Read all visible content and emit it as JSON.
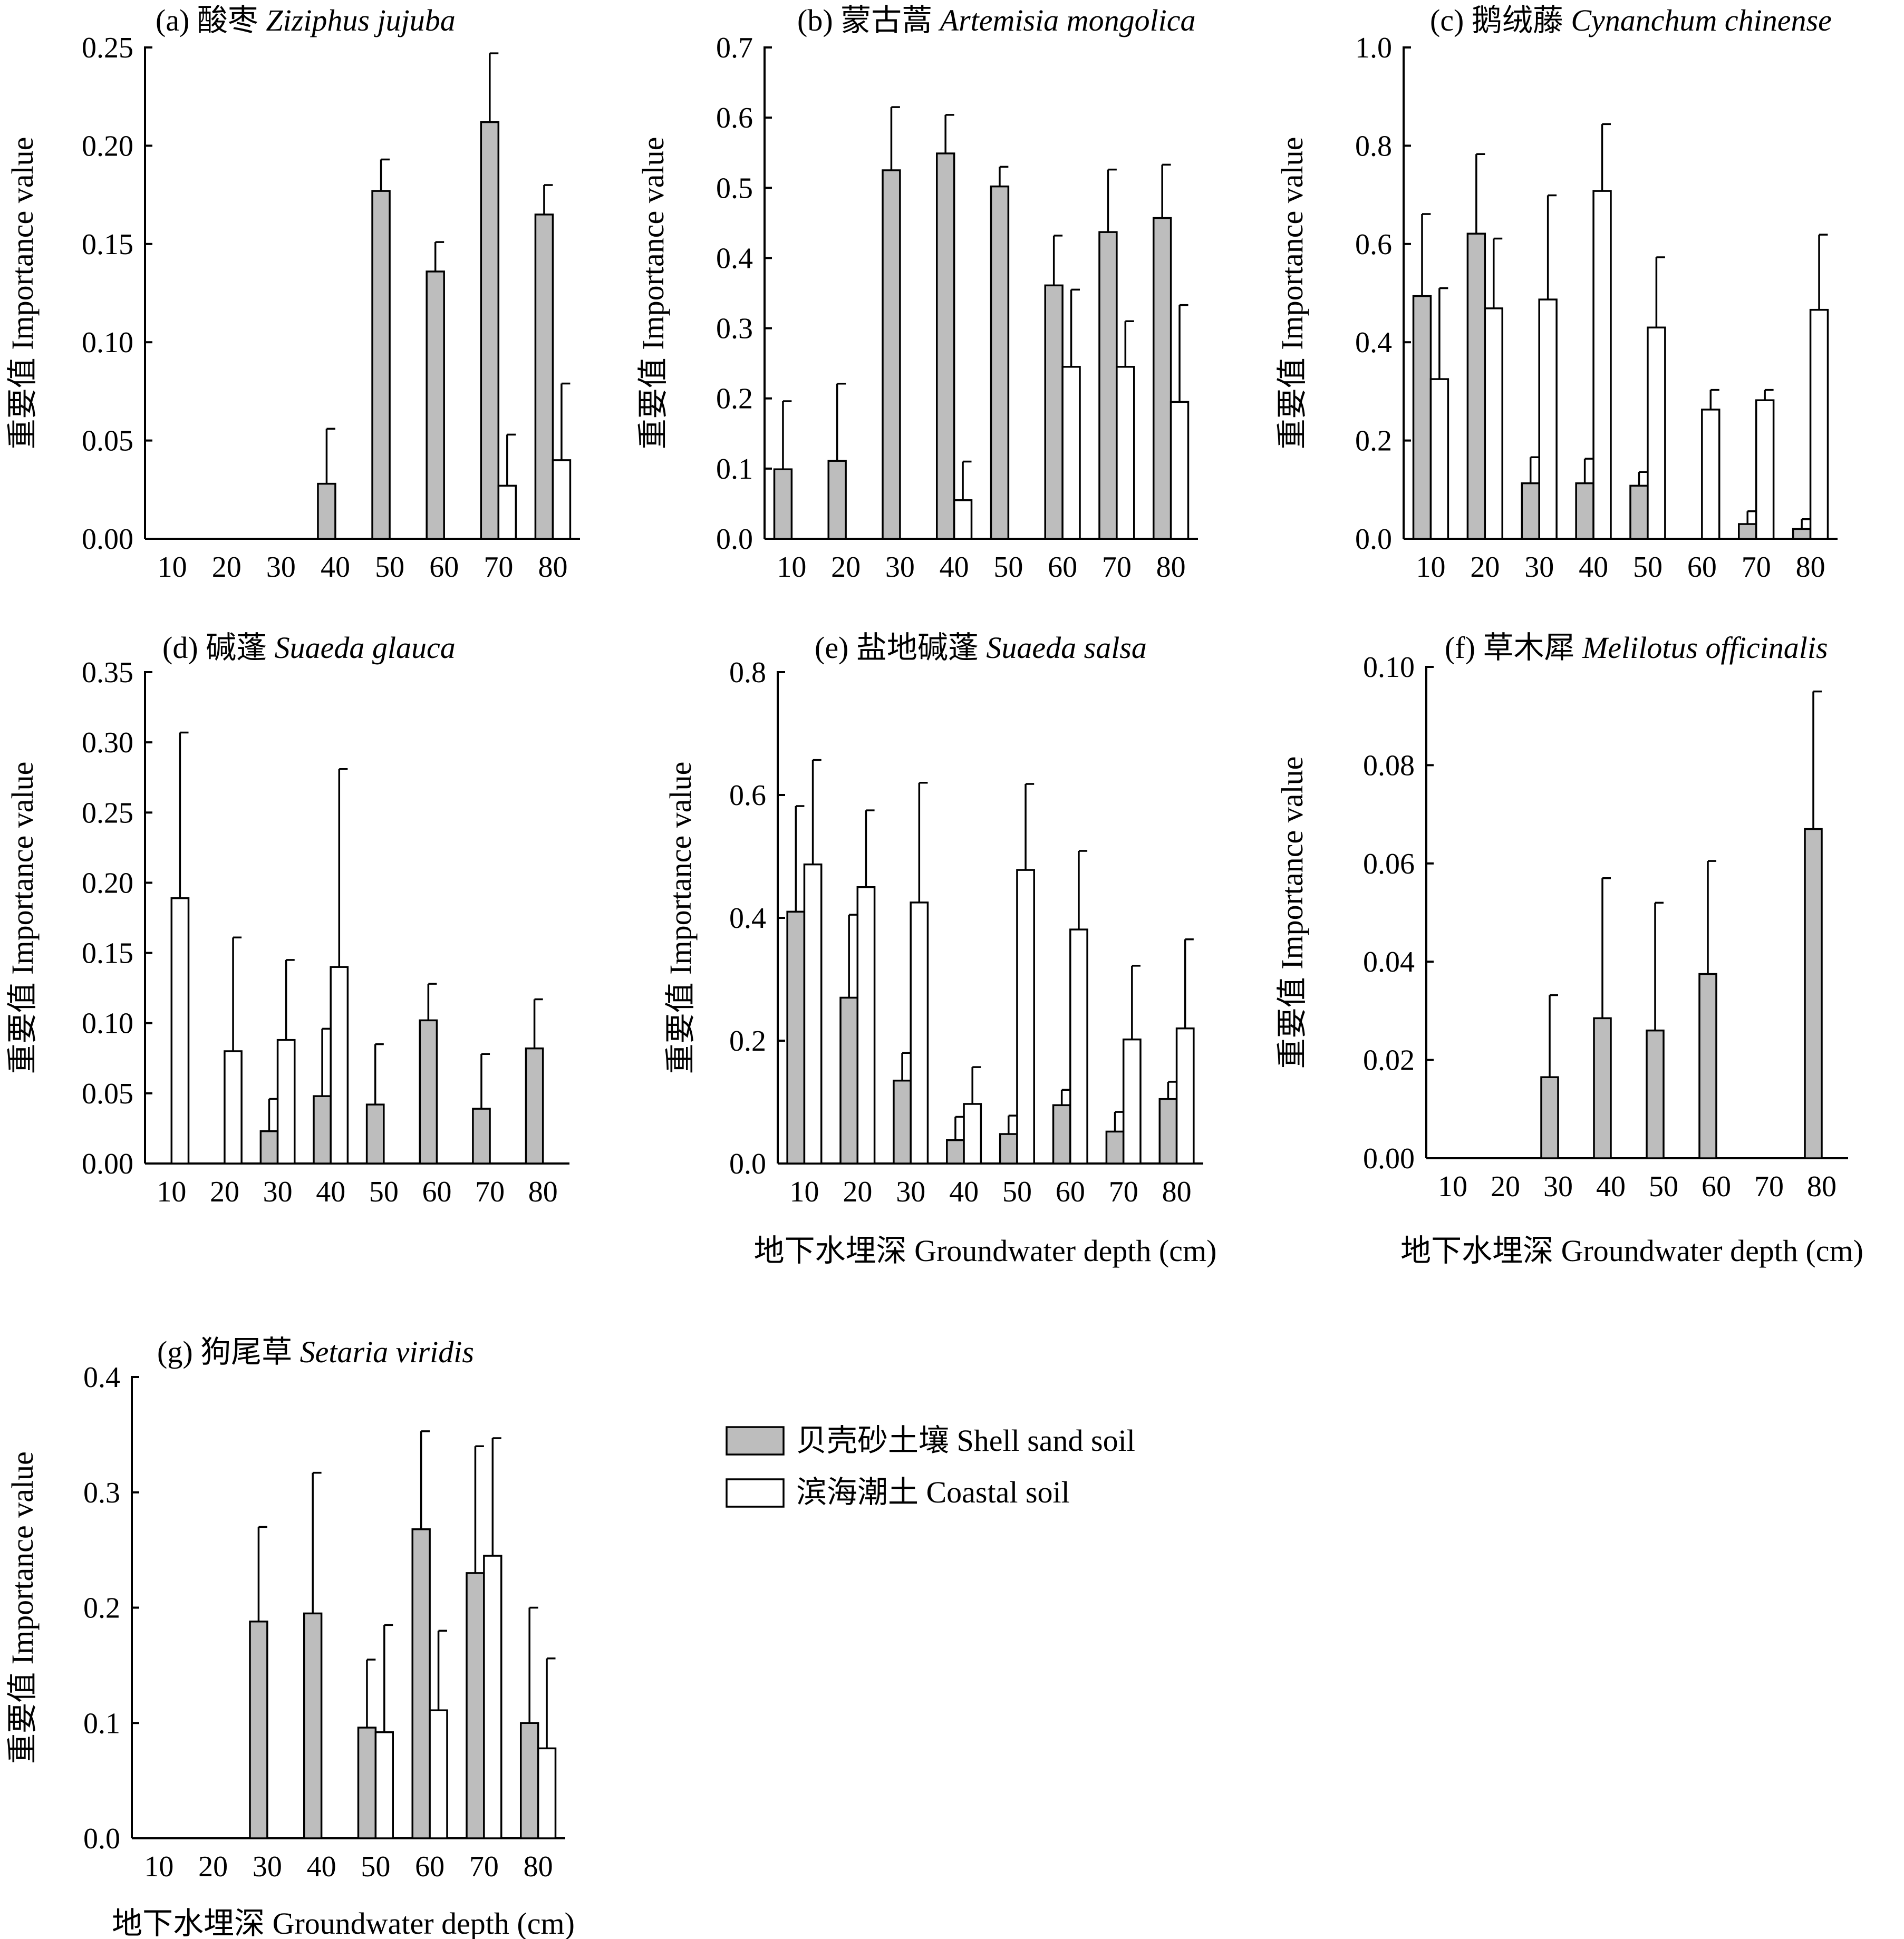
{
  "legend": {
    "items": [
      {
        "label": "贝壳砂土壤 Shell sand soil",
        "color": "#bdbdbd"
      },
      {
        "label": "滨海潮土 Coastal soil",
        "color": "#ffffff"
      }
    ]
  },
  "chart_data": [
    {
      "type": "bar",
      "panel": "a",
      "title_prefix": "(a) 酸枣 ",
      "title_latin": "Ziziphus jujuba",
      "ylabel": "重要值 Importance value",
      "xlabel": "",
      "categories": [
        "10",
        "20",
        "30",
        "40",
        "50",
        "60",
        "70",
        "80"
      ],
      "ylim": [
        0,
        0.25
      ],
      "yticks": [
        0,
        0.05,
        0.1,
        0.15,
        0.2,
        0.25
      ],
      "ytick_labels": [
        "0.00",
        "0.05",
        "0.10",
        "0.15",
        "0.20",
        "0.25"
      ],
      "series": [
        {
          "name": "贝壳砂土壤 Shell sand soil",
          "values": [
            null,
            null,
            null,
            0.028,
            0.177,
            0.136,
            0.212,
            0.165
          ],
          "errors": [
            null,
            null,
            null,
            0.028,
            0.016,
            0.015,
            0.035,
            0.015
          ]
        },
        {
          "name": "滨海潮土 Coastal soil",
          "values": [
            null,
            null,
            null,
            null,
            null,
            null,
            0.027,
            0.04
          ],
          "errors": [
            null,
            null,
            null,
            null,
            null,
            null,
            0.026,
            0.039
          ]
        }
      ]
    },
    {
      "type": "bar",
      "panel": "b",
      "title_prefix": "(b) 蒙古蒿 ",
      "title_latin": "Artemisia mongolica",
      "ylabel": "重要值 Importance value",
      "xlabel": "",
      "categories": [
        "10",
        "20",
        "30",
        "40",
        "50",
        "60",
        "70",
        "80"
      ],
      "ylim": [
        0,
        0.7
      ],
      "yticks": [
        0,
        0.1,
        0.2,
        0.3,
        0.4,
        0.5,
        0.6,
        0.7
      ],
      "ytick_labels": [
        "0.0",
        "0.1",
        "0.2",
        "0.3",
        "0.4",
        "0.5",
        "0.6",
        "0.7"
      ],
      "series": [
        {
          "name": "贝壳砂土壤 Shell sand soil",
          "values": [
            0.099,
            0.111,
            0.525,
            0.549,
            0.502,
            0.361,
            0.437,
            0.457
          ],
          "errors": [
            0.097,
            0.11,
            0.09,
            0.055,
            0.028,
            0.071,
            0.089,
            0.076
          ]
        },
        {
          "name": "滨海潮土 Coastal soil",
          "values": [
            null,
            null,
            null,
            0.055,
            null,
            0.245,
            0.245,
            0.195
          ],
          "errors": [
            null,
            null,
            null,
            0.055,
            null,
            0.11,
            0.065,
            0.138
          ]
        }
      ]
    },
    {
      "type": "bar",
      "panel": "c",
      "title_prefix": "(c) 鹅绒藤 ",
      "title_latin": "Cynanchum chinense",
      "ylabel": "重要值 Importance value",
      "xlabel": "",
      "categories": [
        "10",
        "20",
        "30",
        "40",
        "50",
        "60",
        "70",
        "80"
      ],
      "ylim": [
        0,
        1.0
      ],
      "yticks": [
        0,
        0.2,
        0.4,
        0.6,
        0.8,
        1.0
      ],
      "ytick_labels": [
        "0.0",
        "0.2",
        "0.4",
        "0.6",
        "0.8",
        "1.0"
      ],
      "series": [
        {
          "name": "贝壳砂土壤 Shell sand soil",
          "values": [
            0.494,
            0.621,
            0.113,
            0.113,
            0.108,
            null,
            0.03,
            0.02
          ],
          "errors": [
            0.167,
            0.162,
            0.053,
            0.05,
            0.028,
            null,
            0.026,
            0.02
          ]
        },
        {
          "name": "滨海潮土 Coastal soil",
          "values": [
            0.325,
            0.469,
            0.487,
            0.708,
            0.43,
            0.263,
            0.282,
            0.466
          ],
          "errors": [
            0.185,
            0.142,
            0.212,
            0.136,
            0.143,
            0.04,
            0.021,
            0.153
          ]
        }
      ]
    },
    {
      "type": "bar",
      "panel": "d",
      "title_prefix": "(d) 碱蓬 ",
      "title_latin": "Suaeda glauca",
      "ylabel": "重要值 Importance value",
      "xlabel": "",
      "categories": [
        "10",
        "20",
        "30",
        "40",
        "50",
        "60",
        "70",
        "80"
      ],
      "ylim": [
        0,
        0.35
      ],
      "yticks": [
        0,
        0.05,
        0.1,
        0.15,
        0.2,
        0.25,
        0.3,
        0.35
      ],
      "ytick_labels": [
        "0.00",
        "0.05",
        "0.10",
        "0.15",
        "0.20",
        "0.25",
        "0.30",
        "0.35"
      ],
      "series": [
        {
          "name": "贝壳砂土壤 Shell sand soil",
          "values": [
            null,
            null,
            0.023,
            0.048,
            0.042,
            0.102,
            0.039,
            0.082
          ],
          "errors": [
            null,
            null,
            0.023,
            0.048,
            0.043,
            0.026,
            0.039,
            0.035
          ]
        },
        {
          "name": "滨海潮土 Coastal soil",
          "values": [
            0.189,
            0.08,
            0.088,
            0.14,
            null,
            null,
            null,
            null
          ],
          "errors": [
            0.118,
            0.081,
            0.057,
            0.141,
            null,
            null,
            null,
            null
          ]
        }
      ]
    },
    {
      "type": "bar",
      "panel": "e",
      "title_prefix": "(e) 盐地碱蓬 ",
      "title_latin": "Suaeda salsa",
      "ylabel": "重要值 Importance value",
      "xlabel": "地下水埋深 Groundwater depth (cm)",
      "categories": [
        "10",
        "20",
        "30",
        "40",
        "50",
        "60",
        "70",
        "80"
      ],
      "ylim": [
        0,
        0.8
      ],
      "yticks": [
        0,
        0.2,
        0.4,
        0.6,
        0.8
      ],
      "ytick_labels": [
        "0.0",
        "0.2",
        "0.4",
        "0.6",
        "0.8"
      ],
      "series": [
        {
          "name": "贝壳砂土壤 Shell sand soil",
          "values": [
            0.41,
            0.27,
            0.135,
            0.038,
            0.048,
            0.095,
            0.052,
            0.105
          ],
          "errors": [
            0.172,
            0.135,
            0.045,
            0.038,
            0.03,
            0.025,
            0.032,
            0.028
          ]
        },
        {
          "name": "滨海潮土 Coastal soil",
          "values": [
            0.487,
            0.45,
            0.425,
            0.097,
            0.478,
            0.381,
            0.202,
            0.22
          ],
          "errors": [
            0.17,
            0.125,
            0.195,
            0.06,
            0.14,
            0.128,
            0.12,
            0.145
          ]
        }
      ]
    },
    {
      "type": "bar",
      "panel": "f",
      "title_prefix": "(f) 草木犀 ",
      "title_latin": "Melilotus officinalis",
      "ylabel": "重要值 Importance value",
      "xlabel": "地下水埋深 Groundwater depth (cm)",
      "categories": [
        "10",
        "20",
        "30",
        "40",
        "50",
        "60",
        "70",
        "80"
      ],
      "ylim": [
        0,
        0.1
      ],
      "yticks": [
        0,
        0.02,
        0.04,
        0.06,
        0.08,
        0.1
      ],
      "ytick_labels": [
        "0.00",
        "0.02",
        "0.04",
        "0.06",
        "0.08",
        "0.10"
      ],
      "series": [
        {
          "name": "贝壳砂土壤 Shell sand soil",
          "values": [
            null,
            null,
            0.0165,
            0.0285,
            0.026,
            0.0375,
            null,
            0.067
          ],
          "errors": [
            null,
            null,
            0.0167,
            0.0285,
            0.026,
            0.023,
            null,
            0.028
          ]
        },
        {
          "name": "滨海潮土 Coastal soil",
          "values": [
            null,
            null,
            null,
            null,
            null,
            null,
            null,
            null
          ],
          "errors": [
            null,
            null,
            null,
            null,
            null,
            null,
            null,
            null
          ]
        }
      ]
    },
    {
      "type": "bar",
      "panel": "g",
      "title_prefix": "(g) 狗尾草 ",
      "title_latin": "Setaria viridis",
      "ylabel": "重要值 Importance value",
      "xlabel": "地下水埋深 Groundwater depth (cm)",
      "categories": [
        "10",
        "20",
        "30",
        "40",
        "50",
        "60",
        "70",
        "80"
      ],
      "ylim": [
        0,
        0.4
      ],
      "yticks": [
        0,
        0.1,
        0.2,
        0.3,
        0.4
      ],
      "ytick_labels": [
        "0.0",
        "0.1",
        "0.2",
        "0.3",
        "0.4"
      ],
      "series": [
        {
          "name": "贝壳砂土壤 Shell sand soil",
          "values": [
            null,
            null,
            0.188,
            0.195,
            0.096,
            0.268,
            0.23,
            0.1
          ],
          "errors": [
            null,
            null,
            0.082,
            0.122,
            0.059,
            0.085,
            0.11,
            0.1
          ]
        },
        {
          "name": "滨海潮土 Coastal soil",
          "values": [
            null,
            null,
            null,
            null,
            0.092,
            0.111,
            0.245,
            0.078
          ],
          "errors": [
            null,
            null,
            null,
            null,
            0.093,
            0.069,
            0.102,
            0.078
          ]
        }
      ]
    }
  ]
}
